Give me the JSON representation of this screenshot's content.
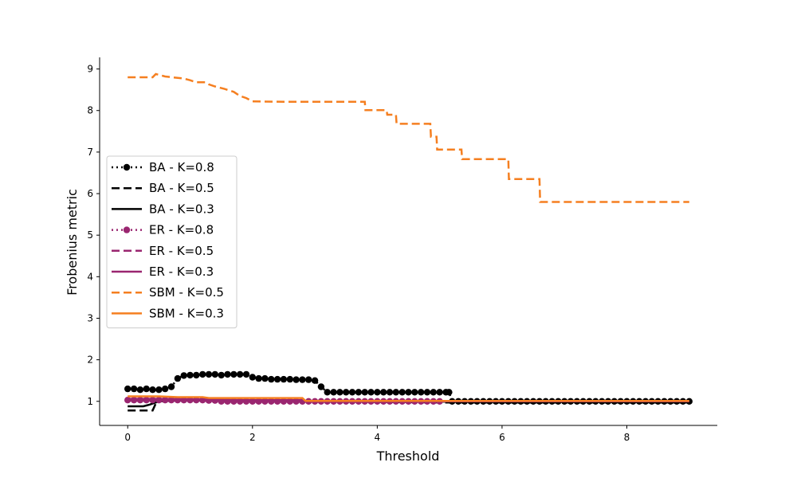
{
  "chart_data": {
    "type": "line",
    "title": "",
    "xlabel": "Threshold",
    "ylabel": "Frobenius metric",
    "xlim": [
      -0.45,
      9.45
    ],
    "ylim": [
      0.42,
      9.28
    ],
    "xticks": [
      0,
      2,
      4,
      6,
      8
    ],
    "yticks": [
      1,
      2,
      3,
      4,
      5,
      6,
      7,
      8,
      9
    ],
    "grid": false,
    "legend_position": "center-left",
    "series": [
      {
        "name": "BA - K=0.8",
        "color": "#000000",
        "style": "dotted",
        "marker": true,
        "points": [
          [
            0.0,
            1.3
          ],
          [
            0.1,
            1.3
          ],
          [
            0.2,
            1.28
          ],
          [
            0.3,
            1.3
          ],
          [
            0.4,
            1.28
          ],
          [
            0.5,
            1.28
          ],
          [
            0.6,
            1.3
          ],
          [
            0.7,
            1.35
          ],
          [
            0.8,
            1.55
          ],
          [
            0.9,
            1.62
          ],
          [
            1.0,
            1.63
          ],
          [
            1.1,
            1.63
          ],
          [
            1.2,
            1.65
          ],
          [
            1.3,
            1.65
          ],
          [
            1.4,
            1.65
          ],
          [
            1.5,
            1.63
          ],
          [
            1.6,
            1.65
          ],
          [
            1.7,
            1.65
          ],
          [
            1.8,
            1.65
          ],
          [
            1.9,
            1.65
          ],
          [
            2.0,
            1.58
          ],
          [
            2.1,
            1.55
          ],
          [
            2.2,
            1.55
          ],
          [
            2.3,
            1.53
          ],
          [
            2.4,
            1.53
          ],
          [
            2.5,
            1.53
          ],
          [
            2.6,
            1.53
          ],
          [
            2.7,
            1.52
          ],
          [
            2.8,
            1.52
          ],
          [
            2.9,
            1.52
          ],
          [
            3.0,
            1.5
          ],
          [
            3.1,
            1.35
          ],
          [
            3.2,
            1.22
          ],
          [
            3.3,
            1.22
          ],
          [
            3.4,
            1.22
          ],
          [
            3.5,
            1.22
          ],
          [
            3.6,
            1.22
          ],
          [
            3.7,
            1.22
          ],
          [
            3.8,
            1.22
          ],
          [
            3.9,
            1.22
          ],
          [
            4.0,
            1.22
          ],
          [
            4.1,
            1.22
          ],
          [
            4.2,
            1.22
          ],
          [
            4.3,
            1.22
          ],
          [
            4.4,
            1.22
          ],
          [
            4.5,
            1.22
          ],
          [
            4.6,
            1.22
          ],
          [
            4.7,
            1.22
          ],
          [
            4.8,
            1.22
          ],
          [
            4.9,
            1.22
          ],
          [
            5.0,
            1.22
          ],
          [
            5.1,
            1.22
          ],
          [
            5.15,
            1.22
          ],
          [
            5.2,
            1.0
          ],
          [
            5.3,
            1.0
          ],
          [
            5.4,
            1.0
          ],
          [
            5.5,
            1.0
          ],
          [
            5.6,
            1.0
          ],
          [
            5.7,
            1.0
          ],
          [
            5.8,
            1.0
          ],
          [
            5.9,
            1.0
          ],
          [
            6.0,
            1.0
          ],
          [
            6.1,
            1.0
          ],
          [
            6.2,
            1.0
          ],
          [
            6.3,
            1.0
          ],
          [
            6.4,
            1.0
          ],
          [
            6.5,
            1.0
          ],
          [
            6.6,
            1.0
          ],
          [
            6.7,
            1.0
          ],
          [
            6.8,
            1.0
          ],
          [
            6.9,
            1.0
          ],
          [
            7.0,
            1.0
          ],
          [
            7.1,
            1.0
          ],
          [
            7.2,
            1.0
          ],
          [
            7.3,
            1.0
          ],
          [
            7.4,
            1.0
          ],
          [
            7.5,
            1.0
          ],
          [
            7.6,
            1.0
          ],
          [
            7.7,
            1.0
          ],
          [
            7.8,
            1.0
          ],
          [
            7.9,
            1.0
          ],
          [
            8.0,
            1.0
          ],
          [
            8.1,
            1.0
          ],
          [
            8.2,
            1.0
          ],
          [
            8.3,
            1.0
          ],
          [
            8.4,
            1.0
          ],
          [
            8.5,
            1.0
          ],
          [
            8.6,
            1.0
          ],
          [
            8.7,
            1.0
          ],
          [
            8.8,
            1.0
          ],
          [
            8.9,
            1.0
          ],
          [
            9.0,
            1.0
          ]
        ]
      },
      {
        "name": "BA - K=0.5",
        "color": "#000000",
        "style": "dashed",
        "marker": false,
        "points": [
          [
            0.0,
            0.78
          ],
          [
            0.3,
            0.78
          ],
          [
            0.4,
            0.78
          ],
          [
            0.45,
            0.95
          ],
          [
            0.55,
            1.02
          ],
          [
            1.0,
            1.02
          ],
          [
            2.0,
            1.02
          ],
          [
            3.0,
            1.0
          ],
          [
            5.2,
            0.97
          ],
          [
            9.0,
            0.97
          ]
        ]
      },
      {
        "name": "BA - K=0.3",
        "color": "#000000",
        "style": "solid",
        "marker": false,
        "points": [
          [
            0.0,
            0.88
          ],
          [
            0.25,
            0.88
          ],
          [
            0.35,
            0.92
          ],
          [
            0.5,
            1.0
          ],
          [
            0.8,
            1.02
          ],
          [
            1.2,
            1.02
          ],
          [
            2.0,
            1.02
          ],
          [
            3.0,
            1.0
          ],
          [
            9.0,
            0.98
          ]
        ]
      },
      {
        "name": "ER - K=0.8",
        "color": "#9a2670",
        "style": "dotted",
        "marker": true,
        "points": [
          [
            0.0,
            1.03
          ],
          [
            0.1,
            1.03
          ],
          [
            0.2,
            1.03
          ],
          [
            0.3,
            1.03
          ],
          [
            0.4,
            1.03
          ],
          [
            0.5,
            1.03
          ],
          [
            0.6,
            1.03
          ],
          [
            0.7,
            1.03
          ],
          [
            0.8,
            1.03
          ],
          [
            0.9,
            1.03
          ],
          [
            1.0,
            1.03
          ],
          [
            1.1,
            1.03
          ],
          [
            1.2,
            1.03
          ],
          [
            1.3,
            1.02
          ],
          [
            1.4,
            1.02
          ],
          [
            1.5,
            1.0
          ],
          [
            1.6,
            1.0
          ],
          [
            1.7,
            1.0
          ],
          [
            1.8,
            1.0
          ],
          [
            1.9,
            1.0
          ],
          [
            2.0,
            1.0
          ],
          [
            2.1,
            1.0
          ],
          [
            2.2,
            1.0
          ],
          [
            2.3,
            1.0
          ],
          [
            2.4,
            1.0
          ],
          [
            2.5,
            1.0
          ],
          [
            2.6,
            1.0
          ],
          [
            2.7,
            1.0
          ],
          [
            2.8,
            1.0
          ],
          [
            2.9,
            1.0
          ],
          [
            3.0,
            1.0
          ],
          [
            3.1,
            1.0
          ],
          [
            3.2,
            1.0
          ],
          [
            3.3,
            1.0
          ],
          [
            3.4,
            1.0
          ],
          [
            3.5,
            1.0
          ],
          [
            3.6,
            1.0
          ],
          [
            3.7,
            1.0
          ],
          [
            3.8,
            1.0
          ],
          [
            3.9,
            1.0
          ],
          [
            4.0,
            1.0
          ],
          [
            4.1,
            1.0
          ],
          [
            4.2,
            1.0
          ],
          [
            4.3,
            1.0
          ],
          [
            4.4,
            1.0
          ],
          [
            4.5,
            1.0
          ],
          [
            4.6,
            1.0
          ],
          [
            4.7,
            1.0
          ],
          [
            4.8,
            1.0
          ],
          [
            4.9,
            1.0
          ],
          [
            5.0,
            1.0
          ]
        ]
      },
      {
        "name": "ER - K=0.5",
        "color": "#9a2670",
        "style": "dashed",
        "marker": false,
        "points": [
          [
            0.0,
            1.05
          ],
          [
            0.5,
            1.05
          ],
          [
            1.0,
            1.05
          ],
          [
            1.5,
            1.03
          ],
          [
            2.0,
            1.02
          ],
          [
            2.8,
            1.02
          ],
          [
            2.85,
            1.0
          ],
          [
            9.0,
            1.0
          ]
        ]
      },
      {
        "name": "ER - K=0.3",
        "color": "#9a2670",
        "style": "solid",
        "marker": false,
        "points": [
          [
            0.0,
            1.06
          ],
          [
            0.5,
            1.06
          ],
          [
            1.0,
            1.05
          ],
          [
            1.5,
            1.04
          ],
          [
            2.0,
            1.03
          ],
          [
            2.8,
            1.03
          ],
          [
            2.85,
            1.0
          ],
          [
            9.0,
            1.0
          ]
        ]
      },
      {
        "name": "SBM - K=0.5",
        "color": "#f57f20",
        "style": "dashed",
        "marker": false,
        "points": [
          [
            0.0,
            8.8
          ],
          [
            0.4,
            8.8
          ],
          [
            0.45,
            8.88
          ],
          [
            0.6,
            8.82
          ],
          [
            0.9,
            8.77
          ],
          [
            1.0,
            8.73
          ],
          [
            1.1,
            8.68
          ],
          [
            1.25,
            8.68
          ],
          [
            1.3,
            8.63
          ],
          [
            1.4,
            8.58
          ],
          [
            1.55,
            8.52
          ],
          [
            1.7,
            8.45
          ],
          [
            1.8,
            8.35
          ],
          [
            1.9,
            8.3
          ],
          [
            2.0,
            8.22
          ],
          [
            2.5,
            8.21
          ],
          [
            3.0,
            8.21
          ],
          [
            3.8,
            8.21
          ],
          [
            3.81,
            8.01
          ],
          [
            4.15,
            8.01
          ],
          [
            4.16,
            7.9
          ],
          [
            4.3,
            7.9
          ],
          [
            4.31,
            7.68
          ],
          [
            4.85,
            7.68
          ],
          [
            4.86,
            7.37
          ],
          [
            4.95,
            7.37
          ],
          [
            4.96,
            7.06
          ],
          [
            5.35,
            7.06
          ],
          [
            5.36,
            6.83
          ],
          [
            6.1,
            6.83
          ],
          [
            6.11,
            6.35
          ],
          [
            6.6,
            6.35
          ],
          [
            6.61,
            5.8
          ],
          [
            9.0,
            5.8
          ]
        ]
      },
      {
        "name": "SBM - K=0.3",
        "color": "#f57f20",
        "style": "solid",
        "marker": false,
        "points": [
          [
            0.0,
            1.12
          ],
          [
            0.5,
            1.12
          ],
          [
            0.8,
            1.1
          ],
          [
            1.2,
            1.1
          ],
          [
            1.3,
            1.08
          ],
          [
            2.0,
            1.08
          ],
          [
            2.8,
            1.08
          ],
          [
            2.85,
            1.01
          ],
          [
            9.0,
            1.01
          ]
        ]
      }
    ]
  }
}
